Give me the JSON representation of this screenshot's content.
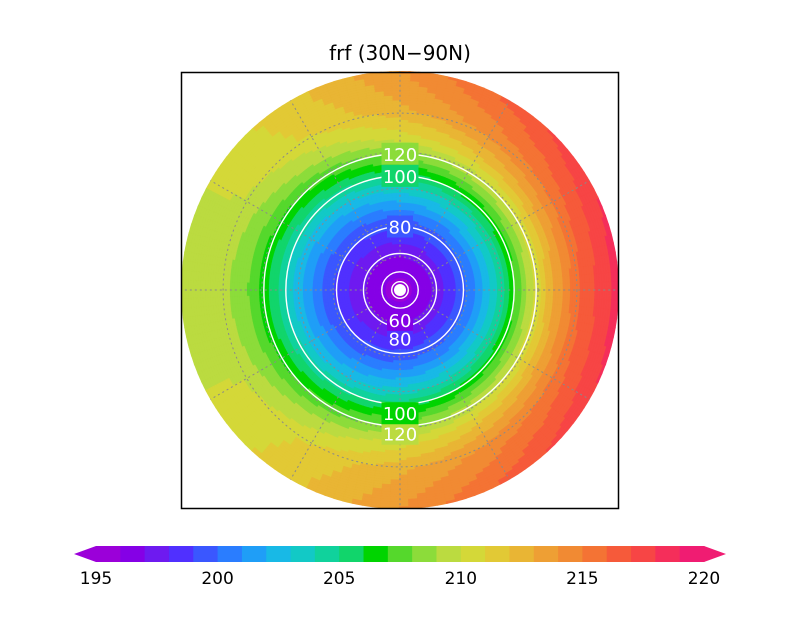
{
  "chart_data": {
    "type": "heatmap",
    "title": "frf (30N−90N)",
    "projection": "north-polar-stereographic",
    "lat_range": [
      30,
      90
    ],
    "grid": true,
    "field": {
      "rings": [
        {
          "lat": 90,
          "value": 195.5
        },
        {
          "lat": 82,
          "value": 196.5
        },
        {
          "lat": 75,
          "value": 198.2
        },
        {
          "lat": 68,
          "value": 200.2
        },
        {
          "lat": 60,
          "value": 203.5
        },
        {
          "lat": 53,
          "value": 207.2
        },
        {
          "lat": 46,
          "value": 210.5
        },
        {
          "lat": 39,
          "value": 212.8
        },
        {
          "lat": 30,
          "value": 214.0
        }
      ],
      "tilt_toward_east": 4.5
    },
    "contours": [
      {
        "value": 120,
        "lat": 50.5,
        "label_lat_top": 50.5,
        "label_lat_bottom": 48.5,
        "label": "120"
      },
      {
        "value": 100,
        "lat": 56.5,
        "label_lat_top": 56.5,
        "label_lat_bottom": 54.0,
        "label": "100"
      },
      {
        "value": 80,
        "lat": 71,
        "label_lat_top": 71,
        "label_lat_bottom": 75.5,
        "label": "80"
      },
      {
        "value": 60,
        "lat": 79,
        "label_lat_bottom": 81,
        "label": "60"
      },
      {
        "value": 40,
        "lat": 84.5
      },
      {
        "value": 20,
        "lat": 87.5
      }
    ],
    "colorbar": {
      "min": 195,
      "max": 220,
      "step": 1,
      "tick_values": [
        195,
        200,
        205,
        210,
        215,
        220
      ],
      "tick_labels": [
        "195",
        "200",
        "205",
        "210",
        "215",
        "220"
      ],
      "extend": "both",
      "colors": [
        "#9b00d9",
        "#8500e6",
        "#6e1af0",
        "#5030ff",
        "#3a57ff",
        "#2a7dff",
        "#1f9ef7",
        "#18b9e6",
        "#12c9c6",
        "#10d29c",
        "#11d56b",
        "#00d400",
        "#55d82c",
        "#8cdc3a",
        "#bbdb40",
        "#d4d838",
        "#e2c935",
        "#e9b534",
        "#ee9f34",
        "#f18a33",
        "#f47334",
        "#f65a3a",
        "#f74545",
        "#f52e5a",
        "#f01c72"
      ]
    }
  }
}
